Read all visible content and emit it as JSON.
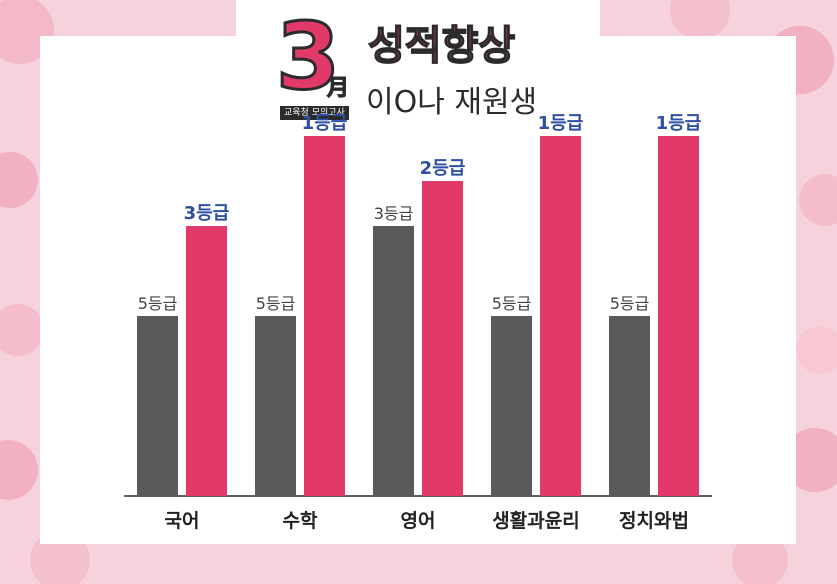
{
  "header": {
    "month_number": "3",
    "month_char": "月",
    "exam_name": "교육청 모의고사",
    "headline": "성적향상",
    "student": "이O나 재원생"
  },
  "colors": {
    "before": "#595a5a",
    "after": "#e0396a",
    "after_label": "#2f4fa3",
    "background": "#f6d3dc"
  },
  "chart_data": {
    "type": "bar",
    "categories": [
      "국어",
      "수학",
      "영어",
      "생활과윤리",
      "정치와법"
    ],
    "series": [
      {
        "values": [
          5,
          5,
          3,
          5,
          5
        ],
        "labels": [
          "5등급",
          "5등급",
          "3등급",
          "5등급",
          "5등급"
        ]
      },
      {
        "values": [
          3,
          1,
          2,
          1,
          1
        ],
        "labels": [
          "3등급",
          "1등급",
          "2등급",
          "1등급",
          "1등급"
        ]
      }
    ],
    "title": "",
    "xlabel": "",
    "ylabel": "",
    "ylim": [
      9,
      1
    ],
    "grid": false,
    "legend": "none"
  }
}
